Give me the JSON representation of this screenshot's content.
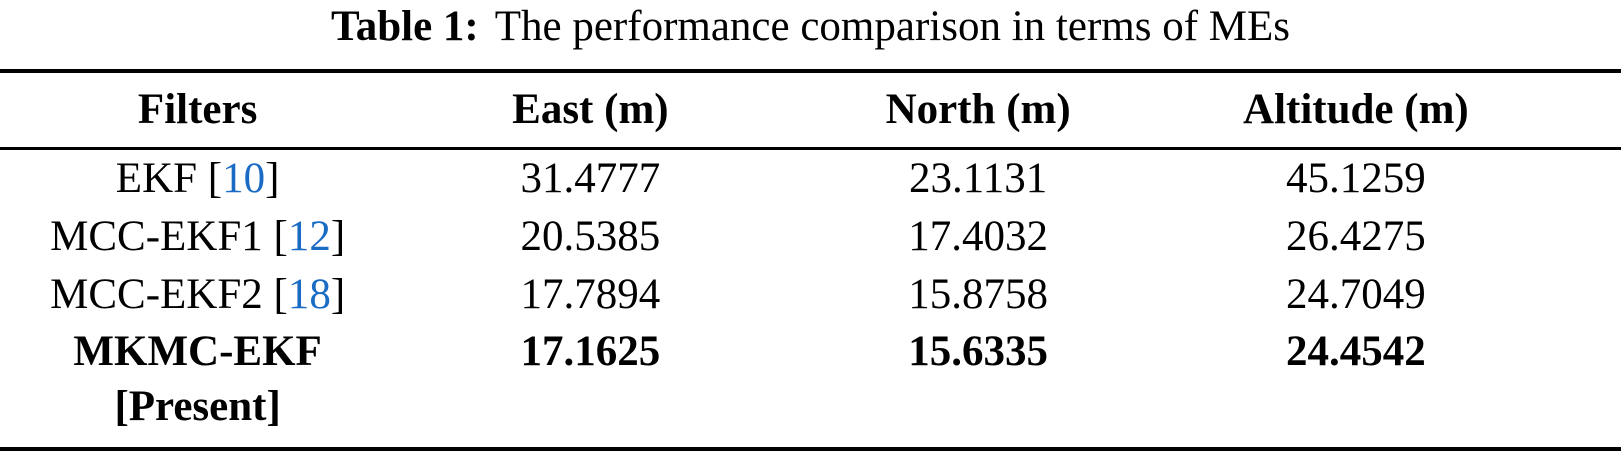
{
  "title": {
    "label": "Table 1:",
    "text": "The performance comparison in terms of MEs"
  },
  "symbols": {
    "lbracket": "[",
    "rbracket": "]"
  },
  "table": {
    "headers": {
      "filters": "Filters",
      "east": "East (m)",
      "north": "North (m)",
      "altitude": "Altitude (m)"
    },
    "rows": [
      {
        "filter": "EKF",
        "citation": "10",
        "east": "31.4777",
        "north": "23.1131",
        "altitude": "45.1259"
      },
      {
        "filter": "MCC-EKF1",
        "citation": "12",
        "east": "20.5385",
        "north": "17.4032",
        "altitude": "26.4275"
      },
      {
        "filter": "MCC-EKF2",
        "citation": "18",
        "east": "17.7894",
        "north": "15.8758",
        "altitude": "24.7049"
      },
      {
        "filter": "MKMC-EKF",
        "suffix": "[Present]",
        "east": "17.1625",
        "north": "15.6335",
        "altitude": "24.4542"
      }
    ]
  },
  "colors": {
    "text": "#000000",
    "rule": "#000000",
    "citation_blue": "#1a6bc4"
  }
}
